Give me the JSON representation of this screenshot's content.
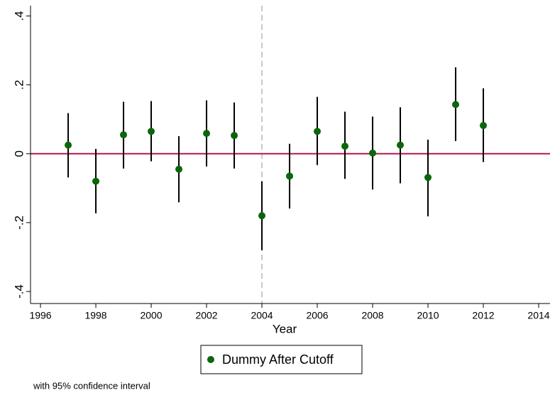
{
  "chart_data": {
    "type": "errorbar-scatter",
    "x_label": "Year",
    "note": "with 95% confidence interval",
    "xlim": [
      1995.64,
      2014.41
    ],
    "ylim": [
      -0.435,
      0.43
    ],
    "xticks": [
      1996,
      1998,
      2000,
      2002,
      2004,
      2006,
      2008,
      2010,
      2012,
      2014
    ],
    "yticks": [
      {
        "value": -0.4,
        "label": "-.4"
      },
      {
        "value": -0.2,
        "label": "-.2"
      },
      0,
      {
        "value": 0.2,
        "label": ".2"
      },
      {
        "value": 0.4,
        "label": ".4"
      }
    ],
    "xline": 2004,
    "yline": 0,
    "yline_color": "#b5164b",
    "xline_color": "#c8c8c8",
    "x": [
      1997,
      1998,
      1999,
      2000,
      2001,
      2002,
      2003,
      2004,
      2005,
      2006,
      2007,
      2008,
      2009,
      2010,
      2011,
      2012
    ],
    "series": [
      {
        "name": "Dummy After Cutoff",
        "color": "#0b660b",
        "values": [
          0.025,
          -0.08,
          0.055,
          0.065,
          -0.045,
          0.059,
          0.053,
          -0.18,
          -0.065,
          0.065,
          0.022,
          0.002,
          0.025,
          -0.069,
          0.143,
          0.082
        ],
        "lower": [
          -0.069,
          -0.173,
          -0.043,
          -0.022,
          -0.141,
          -0.037,
          -0.043,
          -0.28,
          -0.159,
          -0.033,
          -0.073,
          -0.104,
          -0.086,
          -0.182,
          0.037,
          -0.024
        ],
        "upper": [
          0.118,
          0.014,
          0.151,
          0.153,
          0.051,
          0.155,
          0.149,
          -0.08,
          0.029,
          0.165,
          0.122,
          0.108,
          0.135,
          0.041,
          0.251,
          0.19
        ]
      }
    ]
  }
}
